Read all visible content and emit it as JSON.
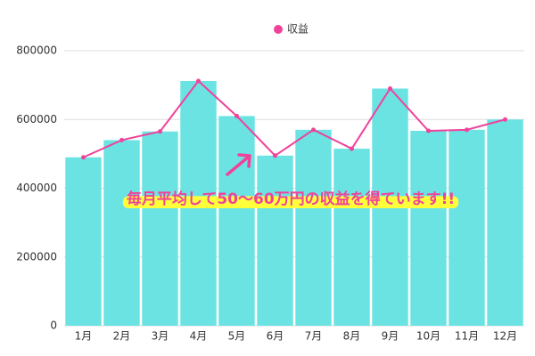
{
  "chart_data": {
    "type": "combo",
    "legend_position": "top",
    "categories": [
      "1月",
      "2月",
      "3月",
      "4月",
      "5月",
      "6月",
      "7月",
      "8月",
      "9月",
      "10月",
      "11月",
      "12月"
    ],
    "series": [
      {
        "name": "収益",
        "color": "#f0429a",
        "bar_color": "#6be3e3",
        "values": [
          490000,
          540000,
          565000,
          712000,
          610000,
          495000,
          570000,
          515000,
          690000,
          567000,
          570000,
          600000
        ]
      }
    ],
    "ylim": [
      0,
      800000
    ],
    "yticks": [
      0,
      200000,
      400000,
      600000,
      800000
    ],
    "grid": true,
    "annotation": "毎月平均して50〜60万円の収益を得ています!!",
    "annotation_color": "#f0429a",
    "highlight_color": "#ffff3a"
  }
}
